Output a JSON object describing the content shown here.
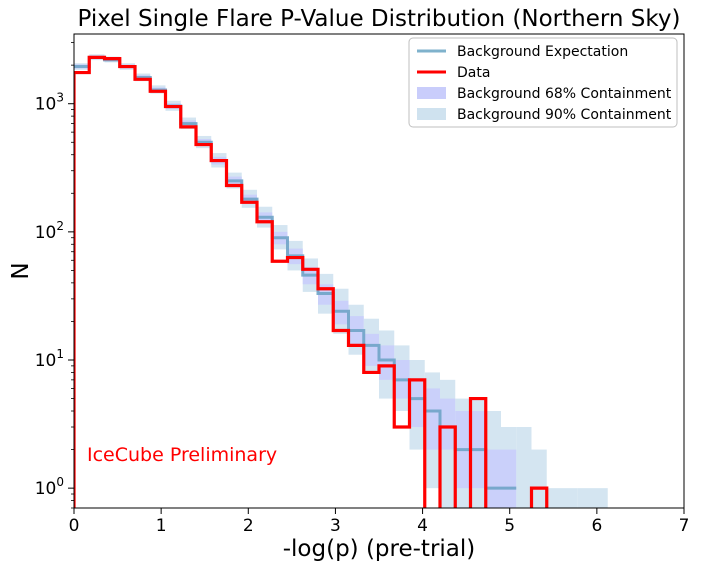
{
  "chart_data": {
    "type": "step-histogram",
    "title": "Pixel Single Flare P-Value Distribution (Northern Sky)",
    "xlabel": "-log(p) (pre-trial)",
    "ylabel": "N",
    "xlim": [
      0,
      7
    ],
    "ylim": [
      0.7,
      3500
    ],
    "yscale": "log",
    "x_ticks": [
      "0",
      "1",
      "2",
      "3",
      "4",
      "5",
      "6",
      "7"
    ],
    "y_ticks": [
      {
        "value": 1,
        "base": "10",
        "exp": "0"
      },
      {
        "value": 10,
        "base": "10",
        "exp": "1"
      },
      {
        "value": 100,
        "base": "10",
        "exp": "2"
      },
      {
        "value": 1000,
        "base": "10",
        "exp": "3"
      }
    ],
    "grid": false,
    "legend_position": "top-right",
    "annotation": {
      "text": "IceCube Preliminary",
      "color": "#ff0000"
    },
    "bin_edges": [
      0,
      0.175,
      0.35,
      0.525,
      0.7,
      0.875,
      1.05,
      1.225,
      1.4,
      1.575,
      1.75,
      1.925,
      2.1,
      2.275,
      2.45,
      2.625,
      2.8,
      2.975,
      3.15,
      3.325,
      3.5,
      3.675,
      3.85,
      4.025,
      4.2,
      4.375,
      4.55,
      4.725,
      4.9,
      5.075,
      5.25,
      5.425,
      5.6,
      5.775,
      5.95,
      6.125
    ],
    "series": [
      {
        "name": "Background Expectation",
        "role": "expectation",
        "color": "#7fb2cc",
        "values": [
          1950,
          2300,
          2200,
          1950,
          1600,
          1280,
          960,
          700,
          500,
          360,
          250,
          180,
          130,
          90,
          65,
          46,
          33,
          24,
          17,
          13,
          10,
          7,
          5,
          4,
          3,
          2,
          2,
          1,
          1,
          null,
          null,
          null,
          null,
          null,
          null
        ]
      },
      {
        "name": "Data",
        "role": "data",
        "color": "#ff0000",
        "values": [
          1750,
          2300,
          2250,
          1950,
          1550,
          1250,
          950,
          660,
          480,
          360,
          230,
          170,
          120,
          59,
          63,
          51,
          36,
          17,
          13,
          8,
          9,
          3,
          7,
          0,
          3,
          0,
          5,
          0,
          0,
          0,
          1,
          0,
          0,
          0,
          0
        ]
      },
      {
        "name": "Background 68% Containment",
        "role": "band68",
        "color": "#c9cdfb",
        "lower": [
          1880,
          2230,
          2140,
          1880,
          1540,
          1230,
          910,
          660,
          470,
          335,
          232,
          165,
          118,
          80,
          56,
          39,
          27,
          19,
          13,
          9,
          7,
          5,
          3,
          2,
          2,
          1,
          1,
          0.7,
          0.7,
          null,
          null,
          null,
          null,
          null,
          null
        ],
        "upper": [
          2030,
          2380,
          2270,
          2020,
          1670,
          1340,
          1010,
          740,
          530,
          385,
          270,
          195,
          142,
          100,
          74,
          53,
          39,
          29,
          22,
          16,
          13,
          10,
          7,
          6,
          5,
          4,
          4,
          2,
          2,
          1,
          1,
          1,
          null,
          null,
          null
        ]
      },
      {
        "name": "Background 90% Containment",
        "role": "band90",
        "color": "#cfe2ef",
        "lower": [
          1840,
          2190,
          2100,
          1840,
          1500,
          1200,
          880,
          635,
          450,
          318,
          218,
          154,
          108,
          73,
          50,
          34,
          23,
          16,
          11,
          8,
          5,
          4,
          2,
          1,
          0.7,
          0.7,
          0.7,
          0.7,
          0.7,
          0.7,
          0.7,
          0.7,
          0.7,
          0.7,
          0.7
        ],
        "upper": [
          2070,
          2430,
          2330,
          2070,
          1720,
          1390,
          1055,
          780,
          560,
          412,
          290,
          213,
          157,
          113,
          85,
          62,
          47,
          36,
          27,
          21,
          17,
          13,
          10,
          8,
          7,
          5,
          5,
          4,
          3,
          3,
          2,
          1,
          1,
          1,
          1
        ]
      }
    ]
  }
}
